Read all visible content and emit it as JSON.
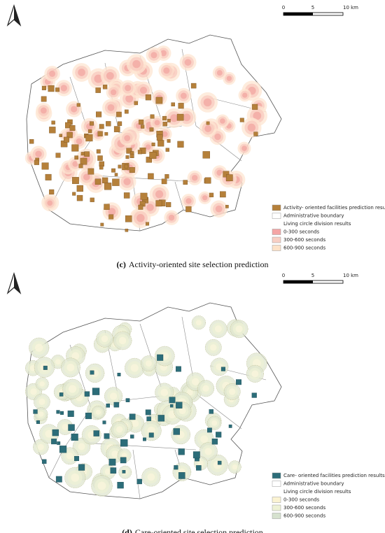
{
  "panels": [
    {
      "scale_labels": [
        "0",
        "5",
        "10 km"
      ],
      "legend": [
        "Activity- oriented facilities prediction results",
        "Administrative boundary",
        "Living circle division results",
        "0-300 seconds",
        "300-600 seconds",
        "600-900 seconds"
      ],
      "caption": {
        "label": "(c)",
        "text": "Activity-oriented site selection prediction"
      }
    },
    {
      "scale_labels": [
        "0",
        "5",
        "10 km"
      ],
      "legend": [
        "Care- oriented facilities prediction results",
        "Administrative boundary",
        "Living circle division results",
        "0-300 seconds",
        "300-600 seconds",
        "600-900 seconds"
      ],
      "caption": {
        "label": "(d)",
        "text": "Care-oriented site selection prediction"
      }
    }
  ]
}
